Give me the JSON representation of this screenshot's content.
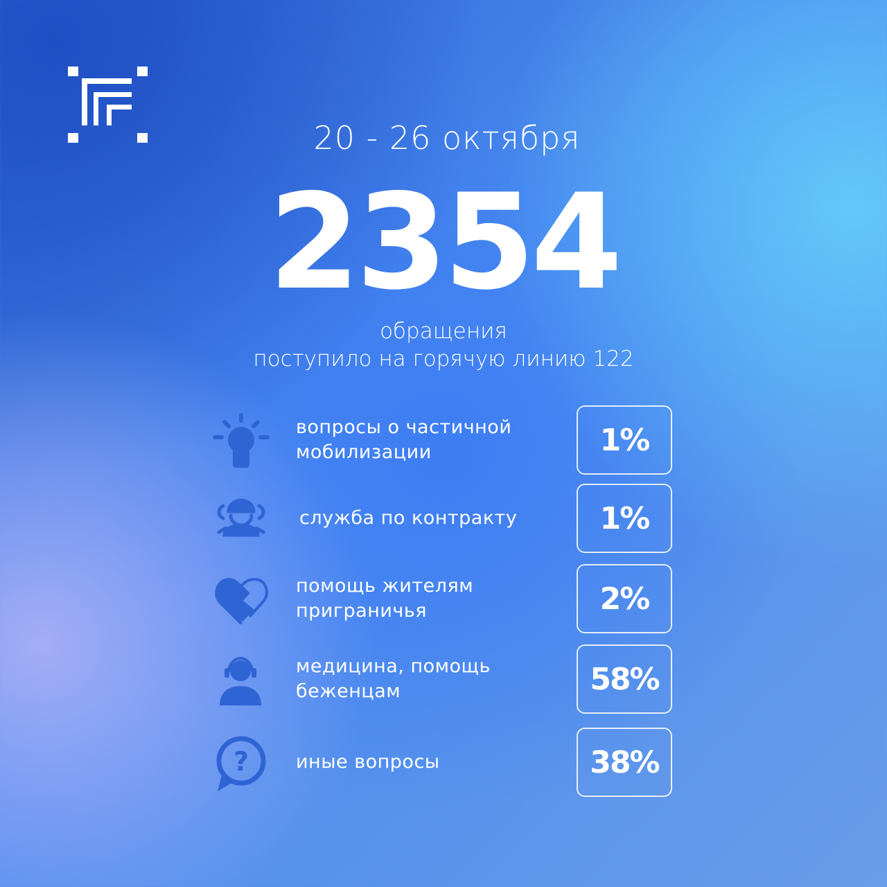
{
  "header": {
    "date_range": "20 - 26 октября",
    "total": "2354",
    "subtitle_line1": "обращения",
    "subtitle_line2": "поступило на горячую линию 122"
  },
  "colors": {
    "icon": "#2f64d4",
    "text": "#ffffff"
  },
  "categories": [
    {
      "icon": "lightbulb-icon",
      "label": "вопросы о частичной мобилизации",
      "percent": "1%"
    },
    {
      "icon": "soldier-icon",
      "label": "служба по контракту",
      "percent": "1%"
    },
    {
      "icon": "handshake-heart-icon",
      "label": "помощь жителям приграничья",
      "percent": "2%"
    },
    {
      "icon": "operator-headset-icon",
      "label": "медицина, помощь беженцам",
      "percent": "58%"
    },
    {
      "icon": "question-bubble-icon",
      "label": "иные вопросы",
      "percent": "38%"
    }
  ]
}
